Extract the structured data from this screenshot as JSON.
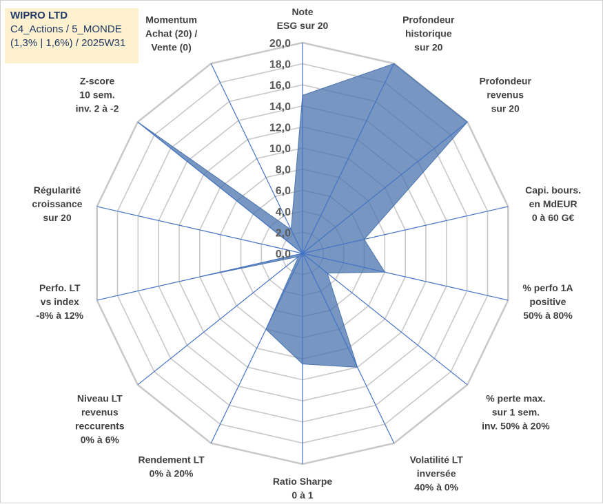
{
  "info_box": {
    "company": "WIPRO LTD",
    "line2": "C4_Actions / 5_MONDE",
    "line3": "(1,3% | 1,6%) / 2025W31"
  },
  "colors": {
    "fill": "#4a74ad",
    "ring": "#c8c8c8",
    "spoke": "#4472c4",
    "label": "#404040",
    "info_background": "#fdf1cf",
    "info_text": "#1f3864"
  },
  "chart_data": {
    "type": "radar",
    "title": "",
    "rmin": 0,
    "rmax": 20,
    "tick_step": 2,
    "tick_labels": [
      "0,0",
      "2,0",
      "4,0",
      "6,0",
      "8,0",
      "10,0",
      "12,0",
      "14,0",
      "16,0",
      "18,0",
      "20,0"
    ],
    "categories": [
      {
        "label": [
          "Note",
          "ESG sur 20"
        ],
        "value": 15.0
      },
      {
        "label": [
          "Profondeur",
          "historique",
          "sur 20"
        ],
        "value": 20.0
      },
      {
        "label": [
          "Profondeur",
          "revenus",
          "sur 20"
        ],
        "value": 20.0
      },
      {
        "label": [
          "Capi. bours.",
          "en MdEUR",
          "0 à 60 G€"
        ],
        "value": 6.0
      },
      {
        "label": [
          "% perfo 1A",
          "positive",
          "50% à 80%"
        ],
        "value": 8.0
      },
      {
        "label": [
          "% perte max.",
          "sur 1 sem.",
          "inv. 50% à 20%"
        ],
        "value": 3.0
      },
      {
        "label": [
          "Volatilité LT",
          "inversée",
          "40% à 0%"
        ],
        "value": 12.0
      },
      {
        "label": [
          "Ratio Sharpe",
          "0 à 1"
        ],
        "value": 10.5
      },
      {
        "label": [
          "Rendement LT",
          "0% à 20%"
        ],
        "value": 8.0
      },
      {
        "label": [
          "Niveau LT",
          "revenus",
          "reccurents",
          "0% à 6%"
        ],
        "value": 0.5
      },
      {
        "label": [
          "Perfo. LT",
          "vs index",
          "-8% à 12%"
        ],
        "value": 10.0
      },
      {
        "label": [
          "Régularité",
          "croissance",
          "sur 20"
        ],
        "value": 0.0
      },
      {
        "label": [
          "Z-score",
          "10 sem.",
          "inv. 2 à -2"
        ],
        "value": 20.0
      },
      {
        "label": [
          "Momentum",
          "Achat (20) /",
          "Vente (0)"
        ],
        "value": 2.5
      }
    ],
    "grid": true,
    "legend": "none"
  }
}
